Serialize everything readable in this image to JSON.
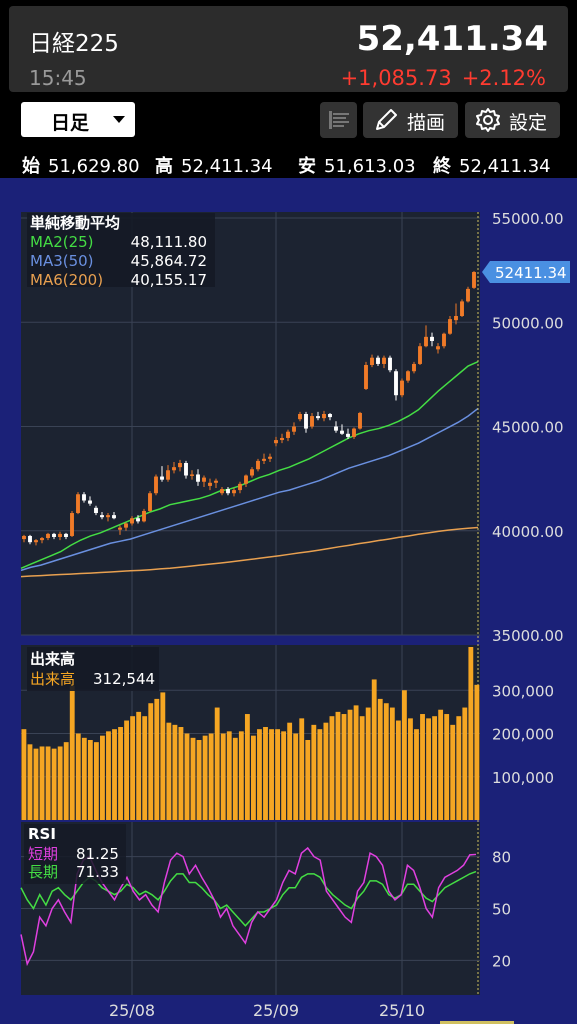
{
  "quote": {
    "symbol": "日経225",
    "price": "52,411.34",
    "time": "15:45",
    "change": "+1,085.73",
    "change_pct": "+2.12%"
  },
  "toolbar": {
    "period": "日足",
    "draw_label": "描画",
    "settings_label": "設定"
  },
  "ohlc": {
    "open_label": "始",
    "open": "51,629.80",
    "high_label": "高",
    "high": "52,411.34",
    "low_label": "安",
    "low": "51,613.03",
    "close_label": "終",
    "close": "52,411.34"
  },
  "colors": {
    "up": "#f07a28",
    "down": "#ffffff",
    "ma25": "#44dd44",
    "ma50": "#6a90e0",
    "ma200": "#e8a050",
    "volume": "#f5a623",
    "rsi_short": "#e040e0",
    "rsi_long": "#44dd44",
    "last_price": "#4a90e2",
    "panel_bg": "#1c2331",
    "outer_bg": "#1b2178"
  },
  "chart_data": [
    {
      "type": "candlestick",
      "title": "単純移動平均",
      "legend": [
        {
          "name": "MA2(25)",
          "value": "48,111.80"
        },
        {
          "name": "MA3(50)",
          "value": "45,864.72"
        },
        {
          "name": "MA6(200)",
          "value": "40,155.17"
        }
      ],
      "yticks": [
        "55000.00",
        "50000.00",
        "45000.00",
        "40000.00",
        "35000.00"
      ],
      "ylim": [
        35000,
        55000
      ],
      "last_price_label": "52411.34",
      "candles": [
        [
          39600,
          39800,
          39450,
          39750
        ],
        [
          39750,
          39800,
          39350,
          39450
        ],
        [
          39450,
          39600,
          39300,
          39550
        ],
        [
          39550,
          39700,
          39400,
          39650
        ],
        [
          39650,
          39900,
          39550,
          39850
        ],
        [
          39850,
          39900,
          39600,
          39700
        ],
        [
          39700,
          39950,
          39550,
          39850
        ],
        [
          39850,
          39900,
          39600,
          39700
        ],
        [
          39750,
          40950,
          39700,
          40850
        ],
        [
          40850,
          41850,
          40800,
          41750
        ],
        [
          41750,
          41850,
          41350,
          41450
        ],
        [
          41450,
          41650,
          41200,
          41300
        ],
        [
          41100,
          41200,
          40750,
          40850
        ],
        [
          40750,
          40900,
          40550,
          40650
        ],
        [
          40650,
          40850,
          40450,
          40750
        ],
        [
          40750,
          40900,
          40550,
          40600
        ],
        [
          40050,
          40250,
          39800,
          40150
        ],
        [
          40150,
          40400,
          40000,
          40350
        ],
        [
          40350,
          40700,
          40250,
          40600
        ],
        [
          40600,
          40750,
          40350,
          40450
        ],
        [
          40450,
          41050,
          40400,
          40950
        ],
        [
          40950,
          41900,
          40900,
          41800
        ],
        [
          41800,
          42700,
          41700,
          42600
        ],
        [
          42600,
          43100,
          42350,
          42450
        ],
        [
          42450,
          43150,
          42350,
          42900
        ],
        [
          42900,
          43300,
          42750,
          43050
        ],
        [
          43050,
          43400,
          42850,
          43250
        ],
        [
          43250,
          43350,
          42500,
          42650
        ],
        [
          42650,
          42900,
          42450,
          42700
        ],
        [
          42700,
          42950,
          42150,
          42350
        ],
        [
          42350,
          42650,
          42100,
          42550
        ],
        [
          42150,
          42500,
          41950,
          42300
        ],
        [
          42300,
          42500,
          42050,
          42400
        ],
        [
          41800,
          42100,
          41700,
          42000
        ],
        [
          42000,
          42100,
          41700,
          41800
        ],
        [
          41800,
          42050,
          41650,
          41950
        ],
        [
          41950,
          42350,
          41800,
          42250
        ],
        [
          42250,
          42700,
          42100,
          42650
        ],
        [
          42650,
          43050,
          42550,
          42950
        ],
        [
          42950,
          43450,
          42850,
          43350
        ],
        [
          43350,
          43700,
          43200,
          43450
        ],
        [
          43450,
          43700,
          43300,
          43550
        ],
        [
          44200,
          44500,
          44050,
          44350
        ],
        [
          44350,
          44650,
          44200,
          44450
        ],
        [
          44450,
          44850,
          44300,
          44750
        ],
        [
          44750,
          45200,
          44600,
          45000
        ],
        [
          45350,
          45700,
          45250,
          45600
        ],
        [
          45600,
          45700,
          44700,
          44900
        ],
        [
          45000,
          45650,
          44900,
          45500
        ],
        [
          45500,
          45700,
          45300,
          45400
        ],
        [
          45400,
          45750,
          45250,
          45600
        ],
        [
          45600,
          45650,
          45300,
          45450
        ],
        [
          45000,
          45250,
          44700,
          44800
        ],
        [
          44800,
          45100,
          44600,
          44650
        ],
        [
          44650,
          44900,
          44400,
          44500
        ],
        [
          44500,
          44950,
          44400,
          44900
        ],
        [
          44900,
          45700,
          44850,
          45650
        ],
        [
          46800,
          48100,
          46750,
          47950
        ],
        [
          47950,
          48450,
          47850,
          48300
        ],
        [
          48300,
          48400,
          47900,
          48000
        ],
        [
          48000,
          48400,
          47800,
          48300
        ],
        [
          48300,
          48400,
          47600,
          47700
        ],
        [
          47650,
          47750,
          46250,
          46500
        ],
        [
          46500,
          47300,
          46400,
          47200
        ],
        [
          47200,
          47700,
          47100,
          47650
        ],
        [
          47650,
          48100,
          47550,
          48000
        ],
        [
          48000,
          49000,
          47950,
          48850
        ],
        [
          48850,
          49850,
          48800,
          49300
        ],
        [
          49300,
          49500,
          48850,
          49100
        ],
        [
          48700,
          49000,
          48500,
          48850
        ],
        [
          48850,
          49500,
          48750,
          49450
        ],
        [
          49450,
          50300,
          49400,
          50150
        ],
        [
          50100,
          50900,
          49900,
          50300
        ],
        [
          50300,
          51100,
          50250,
          51000
        ],
        [
          51000,
          51700,
          50950,
          51600
        ],
        [
          51650,
          52450,
          51600,
          52410
        ]
      ],
      "ma25": [
        38200,
        38400,
        38600,
        38800,
        39000,
        39300,
        39550,
        39750,
        39900,
        40100,
        40300,
        40500,
        40700,
        40900,
        41050,
        41250,
        41350,
        41450,
        41550,
        41700,
        41900,
        42000,
        42150,
        42350,
        42550,
        42700,
        42900,
        43050,
        43250,
        43450,
        43700,
        43950,
        44200,
        44450,
        44650,
        44800,
        44900,
        45050,
        45250,
        45500,
        45800,
        46250,
        46700,
        47100,
        47500,
        47900,
        48111
      ],
      "ma50": [
        38100,
        38250,
        38350,
        38500,
        38650,
        38800,
        38950,
        39100,
        39250,
        39400,
        39500,
        39600,
        39750,
        39900,
        40050,
        40200,
        40350,
        40500,
        40650,
        40800,
        40950,
        41100,
        41250,
        41400,
        41550,
        41700,
        41850,
        41950,
        42100,
        42250,
        42400,
        42600,
        42800,
        43000,
        43150,
        43300,
        43450,
        43600,
        43800,
        44000,
        44200,
        44450,
        44700,
        44950,
        45200,
        45500,
        45865
      ],
      "ma200": [
        37800,
        37830,
        37850,
        37880,
        37900,
        37920,
        37950,
        37970,
        38000,
        38020,
        38050,
        38080,
        38100,
        38130,
        38170,
        38200,
        38250,
        38300,
        38350,
        38400,
        38450,
        38500,
        38560,
        38620,
        38680,
        38740,
        38800,
        38870,
        38940,
        39000,
        39070,
        39150,
        39230,
        39300,
        39380,
        39450,
        39530,
        39600,
        39680,
        39750,
        39830,
        39900,
        39970,
        40030,
        40080,
        40120,
        40155
      ]
    },
    {
      "type": "bar",
      "title": "出来高",
      "series_label": "出来高",
      "last_value": "312,544",
      "yticks": [
        "300,000",
        "200,000",
        "100,000"
      ],
      "ylim": [
        0,
        400000
      ],
      "values": [
        210000,
        175000,
        165000,
        170000,
        170000,
        165000,
        170000,
        180000,
        310000,
        200000,
        190000,
        185000,
        180000,
        195000,
        205000,
        210000,
        215000,
        230000,
        240000,
        250000,
        240000,
        270000,
        280000,
        295000,
        225000,
        220000,
        215000,
        200000,
        190000,
        185000,
        195000,
        200000,
        260000,
        200000,
        205000,
        190000,
        205000,
        245000,
        195000,
        210000,
        215000,
        210000,
        210000,
        205000,
        225000,
        200000,
        235000,
        185000,
        220000,
        210000,
        225000,
        240000,
        250000,
        245000,
        255000,
        265000,
        240000,
        260000,
        325000,
        280000,
        270000,
        260000,
        230000,
        300000,
        235000,
        210000,
        245000,
        235000,
        240000,
        255000,
        245000,
        220000,
        240000,
        260000,
        400000,
        312544
      ]
    },
    {
      "type": "line",
      "title": "RSI",
      "legend": [
        {
          "name": "短期",
          "value": "81.25"
        },
        {
          "name": "長期",
          "value": "71.33"
        }
      ],
      "yticks": [
        "80",
        "50",
        "20"
      ],
      "ylim": [
        0,
        100
      ],
      "short": [
        35,
        18,
        25,
        45,
        40,
        50,
        55,
        48,
        42,
        70,
        78,
        80,
        72,
        65,
        60,
        55,
        62,
        68,
        60,
        55,
        58,
        52,
        48,
        65,
        78,
        82,
        80,
        70,
        75,
        68,
        62,
        55,
        45,
        50,
        40,
        35,
        30,
        42,
        48,
        45,
        50,
        55,
        65,
        72,
        70,
        82,
        85,
        80,
        78,
        60,
        55,
        50,
        45,
        42,
        60,
        65,
        82,
        80,
        75,
        60,
        55,
        58,
        75,
        72,
        62,
        50,
        45,
        62,
        68,
        70,
        72,
        75,
        81,
        81.25
      ],
      "long": [
        62,
        55,
        50,
        58,
        52,
        60,
        62,
        58,
        55,
        60,
        65,
        68,
        66,
        62,
        60,
        58,
        60,
        64,
        62,
        58,
        60,
        58,
        55,
        60,
        66,
        70,
        70,
        65,
        65,
        62,
        58,
        55,
        50,
        52,
        48,
        44,
        40,
        44,
        48,
        48,
        50,
        52,
        58,
        62,
        62,
        68,
        70,
        70,
        68,
        62,
        58,
        55,
        52,
        50,
        56,
        60,
        66,
        66,
        64,
        58,
        56,
        58,
        64,
        64,
        60,
        56,
        54,
        58,
        62,
        64,
        66,
        68,
        70,
        71.33
      ],
      "xticks": [
        "25/08",
        "25/09",
        "25/10"
      ]
    }
  ]
}
